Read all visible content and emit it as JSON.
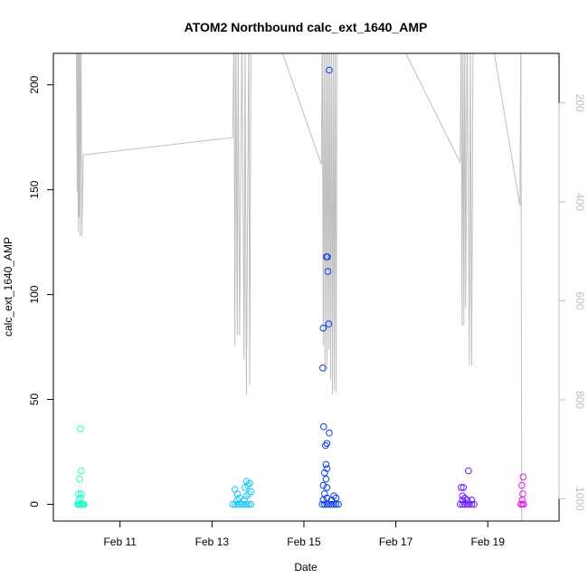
{
  "chart_data": {
    "type": "scatter",
    "title": "ATOM2 Northbound calc_ext_1640_AMP",
    "xlabel": "Date",
    "ylabel": "calc_ext_1640_AMP",
    "x_tick_labels": [
      "Feb 11",
      "Feb 13",
      "Feb 15",
      "Feb 17",
      "Feb 19"
    ],
    "x_ticks_days": [
      11,
      13,
      15,
      17,
      19
    ],
    "xlim_days": [
      9.55,
      20.55
    ],
    "y_ticks": [
      0,
      50,
      100,
      150,
      200
    ],
    "ylim": [
      -8,
      215
    ],
    "y2_ticks": [
      200,
      400,
      600,
      800,
      1000
    ],
    "y2lim_reversed": [
      1045,
      100
    ],
    "grid": false,
    "legend": "none",
    "colors": {
      "depth_line": "#bebebe",
      "series1": "#1affc4",
      "series2": "#1ac6ff",
      "series3": "#0a3cf0",
      "series4": "#6a1aff",
      "series5": "#e01ae0"
    },
    "depth_line": [
      [
        10.05,
        50
      ],
      [
        10.07,
        380
      ],
      [
        10.08,
        50
      ],
      [
        10.09,
        460
      ],
      [
        10.1,
        50
      ],
      [
        10.11,
        430
      ],
      [
        10.12,
        50
      ],
      [
        10.13,
        470
      ],
      [
        10.15,
        50
      ],
      [
        10.17,
        470
      ],
      [
        10.2,
        305
      ],
      [
        13.45,
        270
      ],
      [
        13.48,
        50
      ],
      [
        13.5,
        690
      ],
      [
        13.52,
        50
      ],
      [
        13.55,
        670
      ],
      [
        13.57,
        50
      ],
      [
        13.6,
        670
      ],
      [
        13.65,
        50
      ],
      [
        13.7,
        720
      ],
      [
        13.72,
        50
      ],
      [
        13.75,
        790
      ],
      [
        13.8,
        50
      ],
      [
        13.82,
        770
      ],
      [
        13.85,
        50
      ],
      [
        14.35,
        50
      ],
      [
        15.38,
        325
      ],
      [
        15.4,
        50
      ],
      [
        15.42,
        690
      ],
      [
        15.44,
        50
      ],
      [
        15.46,
        745
      ],
      [
        15.48,
        50
      ],
      [
        15.5,
        740
      ],
      [
        15.52,
        50
      ],
      [
        15.54,
        700
      ],
      [
        15.56,
        50
      ],
      [
        15.58,
        760
      ],
      [
        15.6,
        50
      ],
      [
        15.62,
        790
      ],
      [
        15.64,
        50
      ],
      [
        15.66,
        780
      ],
      [
        15.68,
        50
      ],
      [
        15.7,
        785
      ],
      [
        15.72,
        50
      ],
      [
        16.95,
        50
      ],
      [
        18.4,
        320
      ],
      [
        18.42,
        50
      ],
      [
        18.44,
        650
      ],
      [
        18.46,
        50
      ],
      [
        18.48,
        650
      ],
      [
        18.5,
        50
      ],
      [
        18.52,
        615
      ],
      [
        18.55,
        50
      ],
      [
        18.6,
        730
      ],
      [
        18.62,
        50
      ],
      [
        18.65,
        730
      ],
      [
        18.68,
        50
      ],
      [
        19.05,
        50
      ],
      [
        19.7,
        408
      ],
      [
        19.72,
        50
      ],
      [
        19.74,
        1100
      ]
    ],
    "series": [
      {
        "values": [
          [
            10.08,
            0
          ],
          [
            10.1,
            0
          ],
          [
            10.12,
            0
          ],
          [
            10.15,
            0
          ],
          [
            10.18,
            0
          ],
          [
            10.2,
            0
          ],
          [
            10.22,
            0
          ],
          [
            10.1,
            2
          ],
          [
            10.14,
            3
          ],
          [
            10.1,
            5
          ],
          [
            10.16,
            5
          ],
          [
            10.12,
            12
          ],
          [
            10.15,
            16
          ],
          [
            10.14,
            36
          ]
        ]
      },
      {
        "values": [
          [
            13.45,
            0
          ],
          [
            13.5,
            0
          ],
          [
            13.55,
            0
          ],
          [
            13.6,
            0
          ],
          [
            13.65,
            0
          ],
          [
            13.7,
            0
          ],
          [
            13.75,
            0
          ],
          [
            13.8,
            0
          ],
          [
            13.85,
            0
          ],
          [
            13.55,
            2
          ],
          [
            13.6,
            3
          ],
          [
            13.7,
            2
          ],
          [
            13.75,
            4
          ],
          [
            13.8,
            5
          ],
          [
            13.55,
            5
          ],
          [
            13.5,
            7
          ],
          [
            13.72,
            8
          ],
          [
            13.78,
            9
          ],
          [
            13.82,
            10
          ],
          [
            13.75,
            11
          ],
          [
            13.85,
            6
          ]
        ]
      },
      {
        "values": [
          [
            15.4,
            0
          ],
          [
            15.45,
            0
          ],
          [
            15.5,
            0
          ],
          [
            15.55,
            0
          ],
          [
            15.6,
            0
          ],
          [
            15.65,
            0
          ],
          [
            15.7,
            0
          ],
          [
            15.75,
            0
          ],
          [
            15.42,
            2
          ],
          [
            15.5,
            3
          ],
          [
            15.6,
            2
          ],
          [
            15.65,
            4
          ],
          [
            15.7,
            3
          ],
          [
            15.45,
            5
          ],
          [
            15.5,
            8
          ],
          [
            15.42,
            9
          ],
          [
            15.48,
            12
          ],
          [
            15.45,
            15
          ],
          [
            15.5,
            17
          ],
          [
            15.48,
            19
          ],
          [
            15.47,
            28
          ],
          [
            15.5,
            29
          ],
          [
            15.55,
            34
          ],
          [
            15.43,
            37
          ],
          [
            15.41,
            65
          ],
          [
            15.42,
            84
          ],
          [
            15.54,
            86
          ],
          [
            15.52,
            111
          ],
          [
            15.49,
            118
          ],
          [
            15.51,
            118
          ],
          [
            15.55,
            207
          ]
        ]
      },
      {
        "values": [
          [
            18.4,
            0
          ],
          [
            18.45,
            0
          ],
          [
            18.5,
            0
          ],
          [
            18.55,
            0
          ],
          [
            18.6,
            0
          ],
          [
            18.65,
            0
          ],
          [
            18.7,
            0
          ],
          [
            18.45,
            2
          ],
          [
            18.5,
            3
          ],
          [
            18.55,
            2
          ],
          [
            18.65,
            2
          ],
          [
            18.45,
            4
          ],
          [
            18.42,
            8
          ],
          [
            18.47,
            8
          ],
          [
            18.58,
            16
          ]
        ]
      },
      {
        "values": [
          [
            19.72,
            0
          ],
          [
            19.75,
            0
          ],
          [
            19.78,
            0
          ],
          [
            19.75,
            2
          ],
          [
            19.76,
            5
          ],
          [
            19.74,
            9
          ],
          [
            19.77,
            13
          ]
        ]
      }
    ]
  }
}
